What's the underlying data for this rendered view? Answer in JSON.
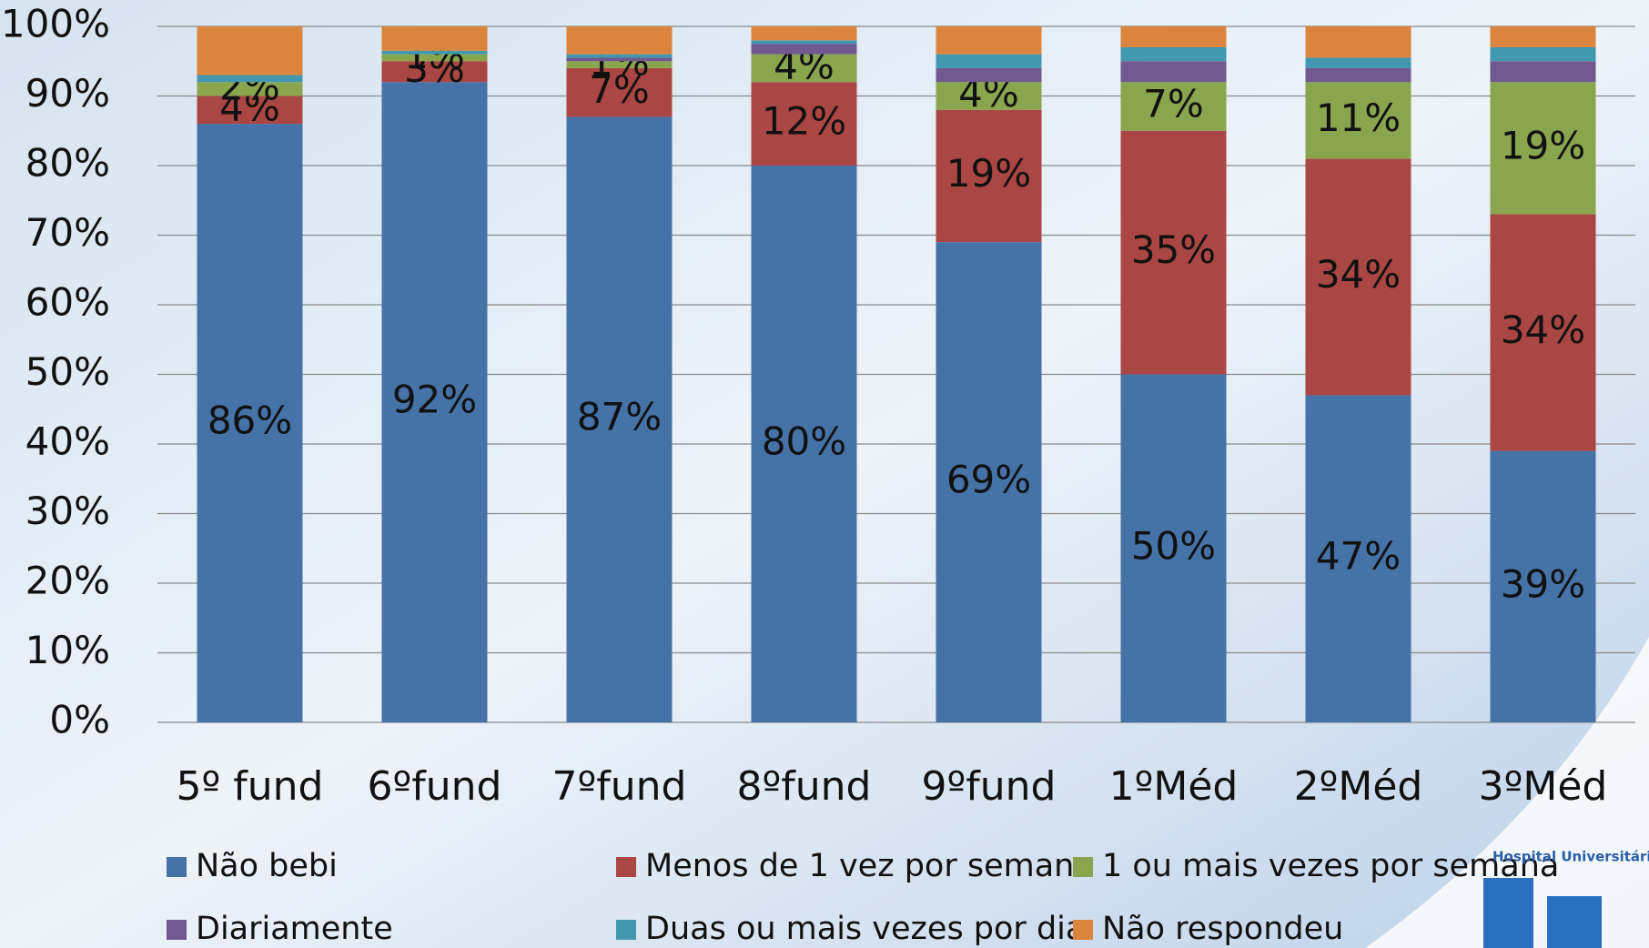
{
  "chart_data": {
    "type": "stacked_bar",
    "categories": [
      "5º fund",
      "6ºfund",
      "7ºfund",
      "8ºfund",
      "9ºfund",
      "1ºMéd",
      "2ºMéd",
      "3ºMéd"
    ],
    "series": [
      {
        "name": "Não bebi",
        "color": "#4572a7",
        "values": [
          86,
          92,
          87,
          80,
          69,
          50,
          47,
          39
        ],
        "value_labels": [
          "86%",
          "92%",
          "87%",
          "80%",
          "69%",
          "50%",
          "47%",
          "39%"
        ]
      },
      {
        "name": "Menos de 1 vez por semana",
        "color": "#aa4643",
        "values": [
          4,
          3,
          7,
          12,
          19,
          35,
          34,
          34
        ],
        "value_labels": [
          "4%",
          "3%",
          "7%",
          "12%",
          "19%",
          "35%",
          "34%",
          "34%"
        ]
      },
      {
        "name": "1 ou mais vezes por semana",
        "color": "#89a54e",
        "values": [
          2,
          1,
          1,
          4,
          4,
          7,
          11,
          19
        ],
        "value_labels": [
          "2%",
          "1%",
          "1%",
          "4%",
          "4%",
          "7%",
          "11%",
          "19%"
        ]
      },
      {
        "name": "Diariamente",
        "color": "#71588f",
        "values": [
          0,
          0,
          0.5,
          1.5,
          2,
          3,
          2,
          3
        ]
      },
      {
        "name": "Duas ou mais vezes por dia",
        "color": "#4198af",
        "values": [
          1,
          0.5,
          0.5,
          0.5,
          2,
          2,
          1.5,
          2
        ]
      },
      {
        "name": "Não respondeu",
        "color": "#db843d",
        "values": [
          7,
          3.5,
          4,
          2,
          4,
          3,
          4.5,
          3
        ]
      }
    ],
    "ylim": [
      0,
      100
    ],
    "yticks": [
      {
        "value": 0,
        "label": "0%"
      },
      {
        "value": 10,
        "label": "10%"
      },
      {
        "value": 20,
        "label": "20%"
      },
      {
        "value": 30,
        "label": "30%"
      },
      {
        "value": 40,
        "label": "40%"
      },
      {
        "value": 50,
        "label": "50%"
      },
      {
        "value": 60,
        "label": "60%"
      },
      {
        "value": 70,
        "label": "70%"
      },
      {
        "value": 80,
        "label": "80%"
      },
      {
        "value": 90,
        "label": "90%"
      },
      {
        "value": 100,
        "label": "100%"
      }
    ],
    "grid": true,
    "legend": "bottom"
  },
  "logo_text": "Hospital Universitári"
}
